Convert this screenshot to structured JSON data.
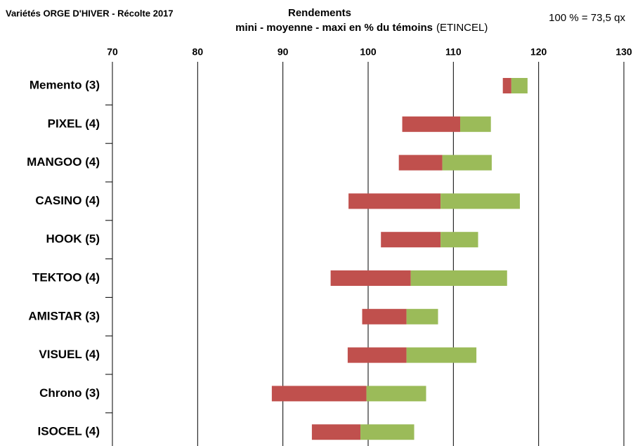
{
  "chart_data": {
    "type": "floating-bar",
    "title": "Variétés ORGE D'HIVER - Récolte 2017",
    "heading": "Rendements",
    "subtitle": "mini - moyenne - maxi  en % du témoins",
    "subtitle_note": "(ETINCEL)",
    "annotation": "100 % = 73,5 qx",
    "categories": [
      "Memento (3)",
      "PIXEL (4)",
      "MANGOO (4)",
      "CASINO (4)",
      "HOOK (5)",
      "TEKTOO (4)",
      "AMISTAR (3)",
      "VISUEL (4)",
      "Chrono (3)",
      "ISOCEL (4)"
    ],
    "mini": [
      115.8,
      104.0,
      103.6,
      97.7,
      101.5,
      95.6,
      99.3,
      97.6,
      88.7,
      93.4
    ],
    "moyenne": [
      116.8,
      110.8,
      108.7,
      108.5,
      108.5,
      105.0,
      104.5,
      104.5,
      99.8,
      99.1
    ],
    "maxi": [
      118.7,
      114.4,
      114.5,
      117.8,
      112.9,
      116.3,
      108.2,
      112.7,
      106.8,
      105.4
    ],
    "colors": [
      "#c0504d",
      "#9bbb59"
    ],
    "xlim": [
      70,
      130
    ],
    "xticks": [
      70,
      80,
      90,
      100,
      110,
      120,
      130
    ],
    "grid": true
  }
}
